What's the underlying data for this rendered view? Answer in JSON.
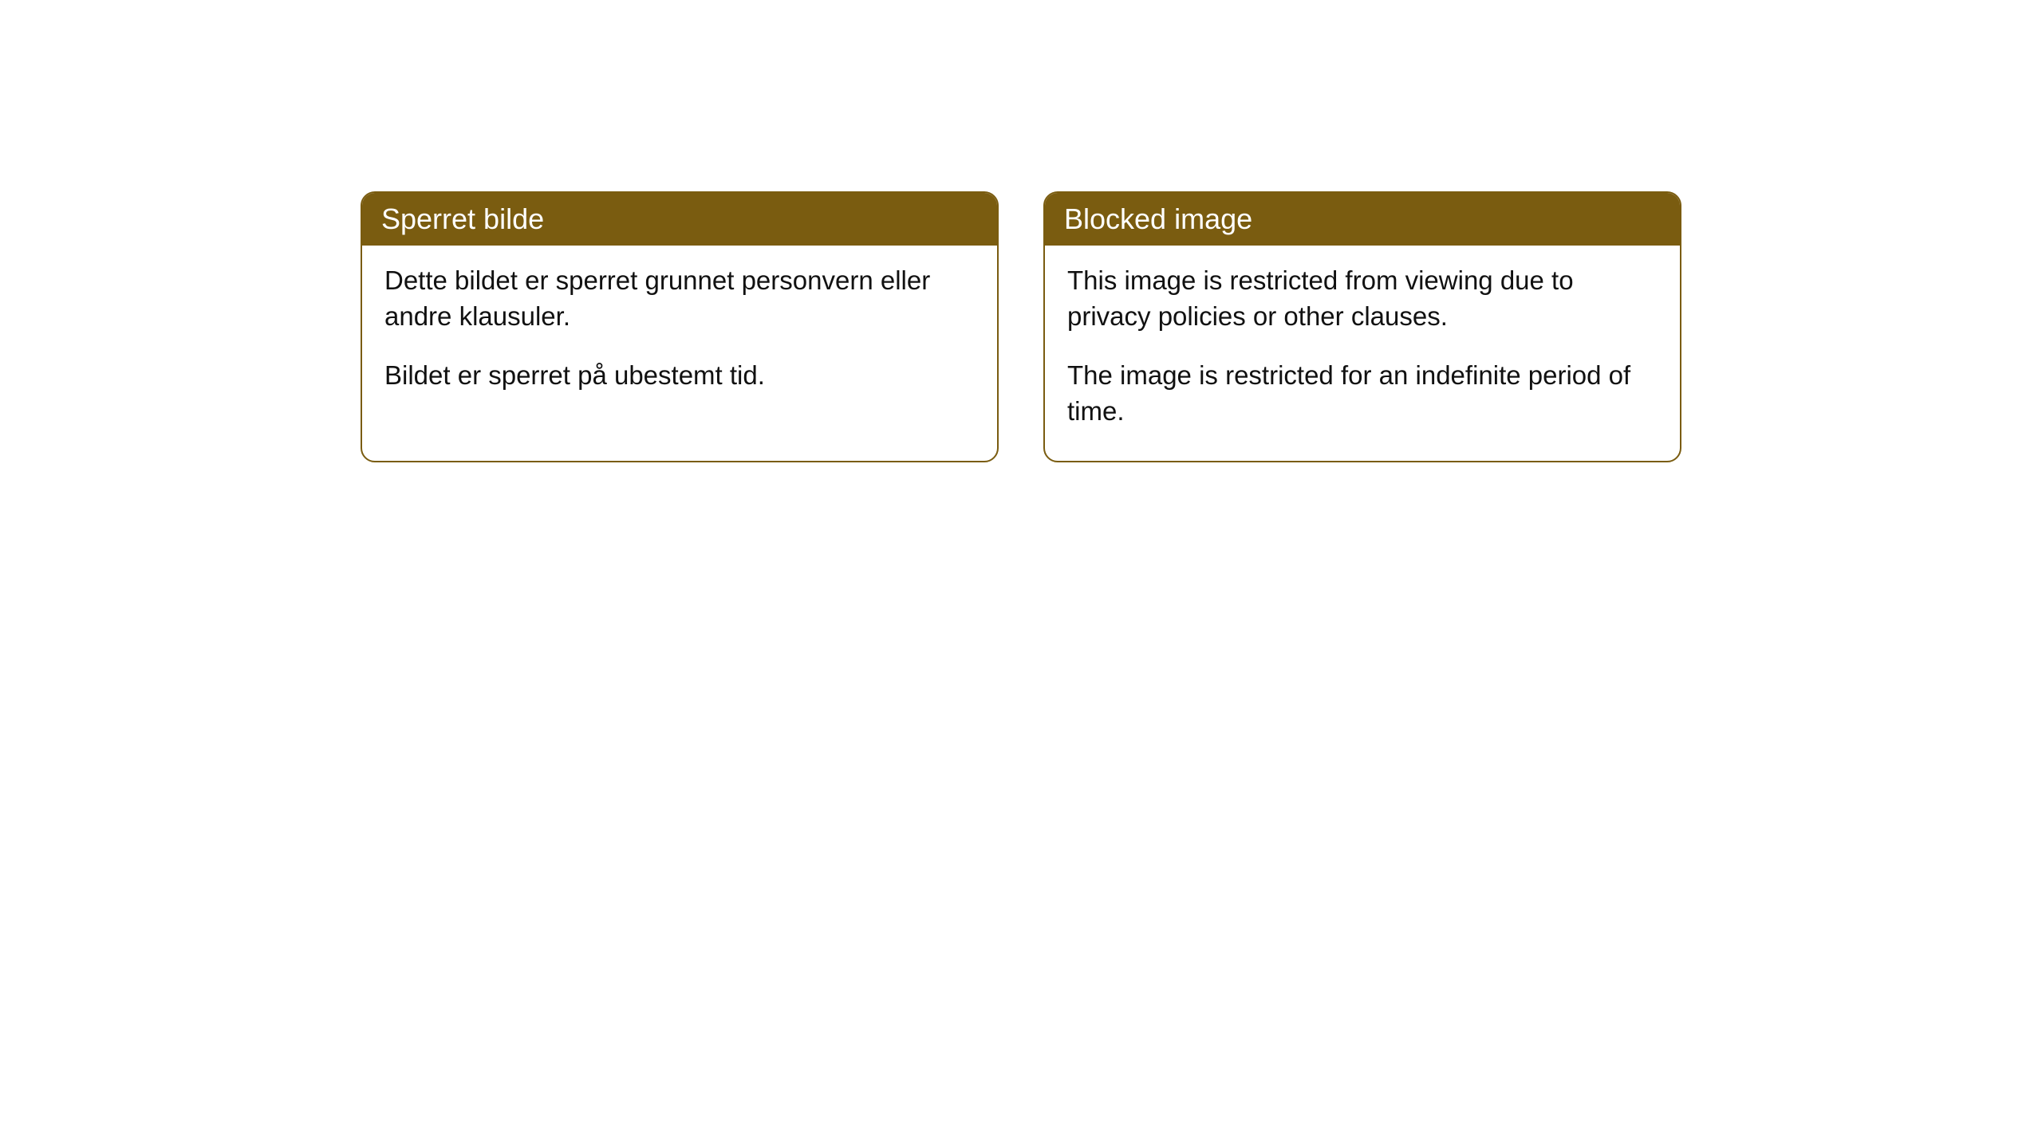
{
  "cards": [
    {
      "header": "Sperret bilde",
      "paragraph1": "Dette bildet er sperret grunnet personvern eller andre klausuler.",
      "paragraph2": "Bildet er sperret på ubestemt tid."
    },
    {
      "header": "Blocked image",
      "paragraph1": "This image is restricted from viewing due to privacy policies or other clauses.",
      "paragraph2": "The image is restricted for an indefinite period of time."
    }
  ],
  "styles": {
    "header_bg_color": "#7a5c10",
    "header_text_color": "#ffffff",
    "border_color": "#7a5c10",
    "body_text_color": "#111111",
    "background_color": "#ffffff",
    "border_radius": 18,
    "header_fontsize": 36,
    "body_fontsize": 33
  }
}
